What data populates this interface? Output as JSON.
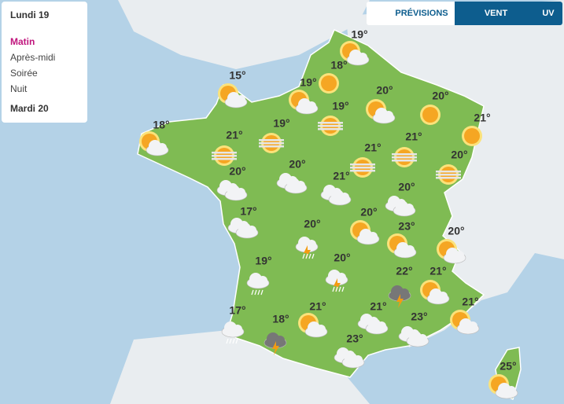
{
  "panel": {
    "day1": "Lundi 19",
    "periods": [
      "Matin",
      "Après-midi",
      "Soirée",
      "Nuit"
    ],
    "day2": "Mardi 20"
  },
  "tabs": [
    "PRÉVISIONS",
    "VENT",
    "UV"
  ],
  "temperatures": [
    "19°",
    "18°",
    "15°",
    "19°",
    "20°",
    "20°",
    "19°",
    "18°",
    "19°",
    "21°",
    "21°",
    "21°",
    "21°",
    "20°",
    "20°",
    "20°",
    "21°",
    "20°",
    "17°",
    "20°",
    "20°",
    "23°",
    "20°",
    "19°",
    "20°",
    "22°",
    "21°",
    "17°",
    "18°",
    "21°",
    "21°",
    "23°",
    "21°",
    "23°",
    "25°"
  ]
}
